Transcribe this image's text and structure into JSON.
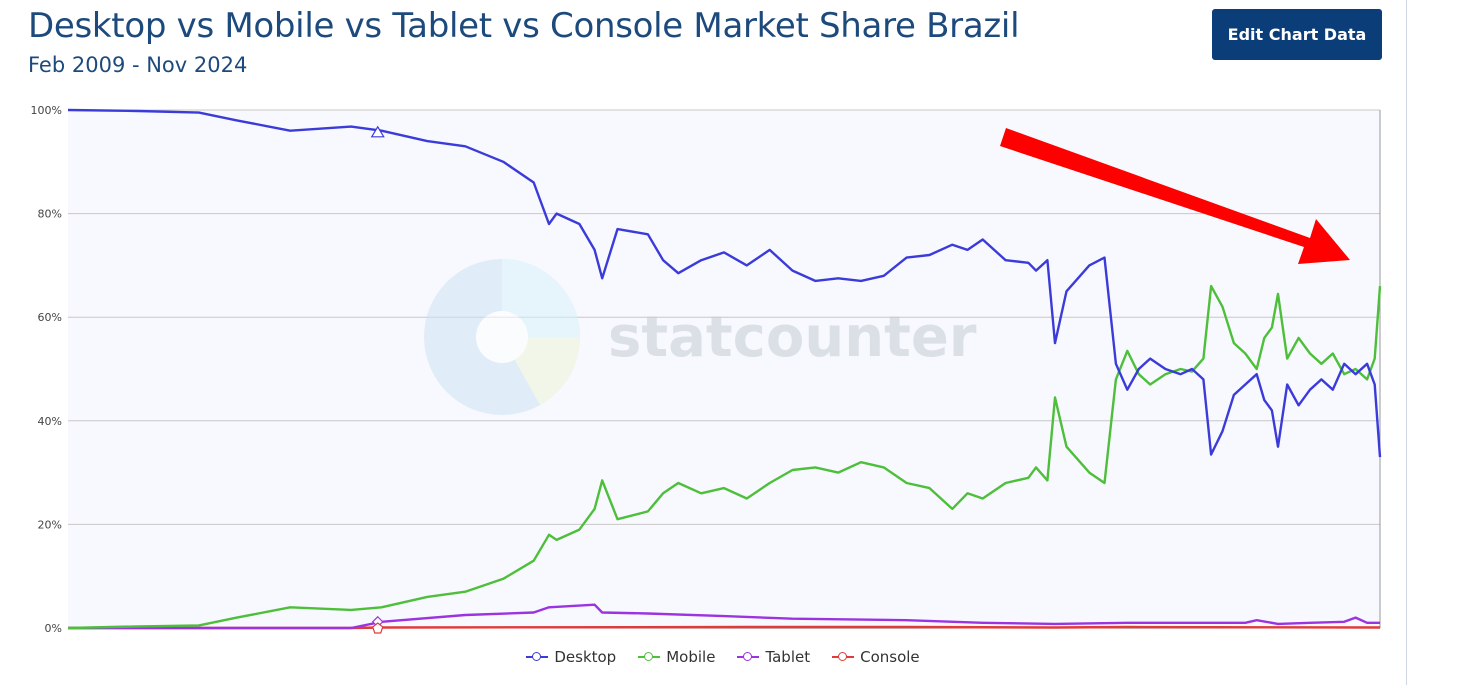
{
  "header": {
    "title": "Desktop vs Mobile vs Tablet vs Console Market Share Brazil",
    "subtitle": "Feb 2009 - Nov 2024",
    "edit_button": "Edit Chart Data"
  },
  "watermark": {
    "text": "statcounter"
  },
  "colors": {
    "Desktop": "#3b3bd9",
    "Mobile": "#4dbf3a",
    "Tablet": "#9b34e0",
    "Console": "#e03a3a",
    "arrow": "#ff0000",
    "button": "#0b3e79"
  },
  "annotation": {
    "type": "red-arrow",
    "direction": "pointing down-right toward end of series"
  },
  "chart_data": {
    "type": "line",
    "title": "Desktop vs Mobile vs Tablet vs Console Market Share Brazil",
    "subtitle": "Feb 2009 - Nov 2024",
    "x_range": [
      "2009-02",
      "2024-11"
    ],
    "ylim": [
      0,
      100
    ],
    "y_ticks": [
      "0%",
      "20%",
      "40%",
      "60%",
      "80%",
      "100%"
    ],
    "grid": "horizontal",
    "legend_position": "bottom-center",
    "series": [
      {
        "name": "Desktop",
        "points": [
          [
            2009.08,
            100
          ],
          [
            2010,
            99.8
          ],
          [
            2010.8,
            99.5
          ],
          [
            2011.3,
            98
          ],
          [
            2012,
            96
          ],
          [
            2012.8,
            96.8
          ],
          [
            2013.2,
            96
          ],
          [
            2013.8,
            94
          ],
          [
            2014.3,
            93
          ],
          [
            2014.8,
            90
          ],
          [
            2015.2,
            86
          ],
          [
            2015.4,
            78
          ],
          [
            2015.5,
            80
          ],
          [
            2015.8,
            78
          ],
          [
            2016,
            73
          ],
          [
            2016.1,
            67.5
          ],
          [
            2016.3,
            77
          ],
          [
            2016.7,
            76
          ],
          [
            2016.9,
            71
          ],
          [
            2017.1,
            68.5
          ],
          [
            2017.4,
            71
          ],
          [
            2017.7,
            72.5
          ],
          [
            2018,
            70
          ],
          [
            2018.3,
            73
          ],
          [
            2018.6,
            69
          ],
          [
            2018.9,
            67
          ],
          [
            2019.2,
            67.5
          ],
          [
            2019.5,
            67
          ],
          [
            2019.8,
            68
          ],
          [
            2020.1,
            71.5
          ],
          [
            2020.4,
            72
          ],
          [
            2020.7,
            74
          ],
          [
            2020.9,
            73
          ],
          [
            2021.1,
            75
          ],
          [
            2021.4,
            71
          ],
          [
            2021.7,
            70.5
          ],
          [
            2021.8,
            69
          ],
          [
            2021.95,
            71
          ],
          [
            2022.05,
            55
          ],
          [
            2022.2,
            65
          ],
          [
            2022.5,
            70
          ],
          [
            2022.7,
            71.5
          ],
          [
            2022.85,
            51
          ],
          [
            2023.0,
            46
          ],
          [
            2023.15,
            50
          ],
          [
            2023.3,
            52
          ],
          [
            2023.5,
            50
          ],
          [
            2023.7,
            49
          ],
          [
            2023.85,
            50
          ],
          [
            2024.0,
            48
          ],
          [
            2024.1,
            33.5
          ],
          [
            2024.25,
            38
          ],
          [
            2024.4,
            45
          ],
          [
            2024.55,
            47
          ],
          [
            2024.7,
            49
          ],
          [
            2024.8,
            44
          ],
          [
            2024.9,
            42
          ],
          [
            2024.98,
            35
          ],
          [
            2025.1,
            47
          ],
          [
            2025.25,
            43
          ],
          [
            2025.4,
            46
          ],
          [
            2025.55,
            48
          ],
          [
            2025.7,
            46
          ],
          [
            2025.85,
            51
          ],
          [
            2026.0,
            49
          ],
          [
            2026.15,
            51
          ],
          [
            2026.25,
            47
          ],
          [
            2026.32,
            33
          ]
        ]
      },
      {
        "name": "Mobile",
        "points": [
          [
            2009.08,
            0
          ],
          [
            2010,
            0.3
          ],
          [
            2010.8,
            0.5
          ],
          [
            2011.3,
            2
          ],
          [
            2012,
            4
          ],
          [
            2012.8,
            3.5
          ],
          [
            2013.2,
            4
          ],
          [
            2013.8,
            6
          ],
          [
            2014.3,
            7
          ],
          [
            2014.8,
            9.5
          ],
          [
            2015.2,
            13
          ],
          [
            2015.4,
            18
          ],
          [
            2015.5,
            17
          ],
          [
            2015.8,
            19
          ],
          [
            2016,
            23
          ],
          [
            2016.1,
            28.5
          ],
          [
            2016.3,
            21
          ],
          [
            2016.7,
            22.5
          ],
          [
            2016.9,
            26
          ],
          [
            2017.1,
            28
          ],
          [
            2017.4,
            26
          ],
          [
            2017.7,
            27
          ],
          [
            2018,
            25
          ],
          [
            2018.3,
            28
          ],
          [
            2018.6,
            30.5
          ],
          [
            2018.9,
            31
          ],
          [
            2019.2,
            30
          ],
          [
            2019.5,
            32
          ],
          [
            2019.8,
            31
          ],
          [
            2020.1,
            28
          ],
          [
            2020.4,
            27
          ],
          [
            2020.7,
            23
          ],
          [
            2020.9,
            26
          ],
          [
            2021.1,
            25
          ],
          [
            2021.4,
            28
          ],
          [
            2021.7,
            29
          ],
          [
            2021.8,
            31
          ],
          [
            2021.95,
            28.5
          ],
          [
            2022.05,
            44.5
          ],
          [
            2022.2,
            35
          ],
          [
            2022.5,
            30
          ],
          [
            2022.7,
            28
          ],
          [
            2022.85,
            48
          ],
          [
            2023.0,
            53.5
          ],
          [
            2023.15,
            49
          ],
          [
            2023.3,
            47
          ],
          [
            2023.5,
            49
          ],
          [
            2023.7,
            50
          ],
          [
            2023.85,
            49.5
          ],
          [
            2024.0,
            52
          ],
          [
            2024.1,
            66
          ],
          [
            2024.25,
            62
          ],
          [
            2024.4,
            55
          ],
          [
            2024.55,
            53
          ],
          [
            2024.7,
            50
          ],
          [
            2024.8,
            56
          ],
          [
            2024.9,
            58
          ],
          [
            2024.98,
            64.5
          ],
          [
            2025.1,
            52
          ],
          [
            2025.25,
            56
          ],
          [
            2025.4,
            53
          ],
          [
            2025.55,
            51
          ],
          [
            2025.7,
            53
          ],
          [
            2025.85,
            49
          ],
          [
            2026.0,
            50
          ],
          [
            2026.15,
            48
          ],
          [
            2026.25,
            52
          ],
          [
            2026.32,
            66
          ]
        ]
      },
      {
        "name": "Tablet",
        "points": [
          [
            2009.08,
            0
          ],
          [
            2012.8,
            0
          ],
          [
            2013.2,
            1.2
          ],
          [
            2014.3,
            2.5
          ],
          [
            2015.2,
            3
          ],
          [
            2015.4,
            4
          ],
          [
            2016,
            4.5
          ],
          [
            2016.1,
            3
          ],
          [
            2016.7,
            2.8
          ],
          [
            2017.7,
            2.3
          ],
          [
            2018.6,
            1.8
          ],
          [
            2020.1,
            1.5
          ],
          [
            2021.1,
            1
          ],
          [
            2022.05,
            0.8
          ],
          [
            2023.0,
            1
          ],
          [
            2024.0,
            1
          ],
          [
            2024.55,
            1
          ],
          [
            2024.7,
            1.5
          ],
          [
            2024.98,
            0.8
          ],
          [
            2025.4,
            1
          ],
          [
            2025.85,
            1.2
          ],
          [
            2026.0,
            2
          ],
          [
            2026.15,
            1
          ],
          [
            2026.32,
            1
          ]
        ]
      },
      {
        "name": "Console",
        "points": [
          [
            2009.08,
            0
          ],
          [
            2012.8,
            0
          ],
          [
            2013.2,
            0.1
          ],
          [
            2018,
            0.2
          ],
          [
            2020.1,
            0.2
          ],
          [
            2022.05,
            0.1
          ],
          [
            2023.0,
            0.2
          ],
          [
            2026.32,
            0.1
          ]
        ]
      }
    ]
  },
  "legend": [
    {
      "name": "Desktop",
      "label": "Desktop"
    },
    {
      "name": "Mobile",
      "label": "Mobile"
    },
    {
      "name": "Tablet",
      "label": "Tablet"
    },
    {
      "name": "Console",
      "label": "Console"
    }
  ]
}
